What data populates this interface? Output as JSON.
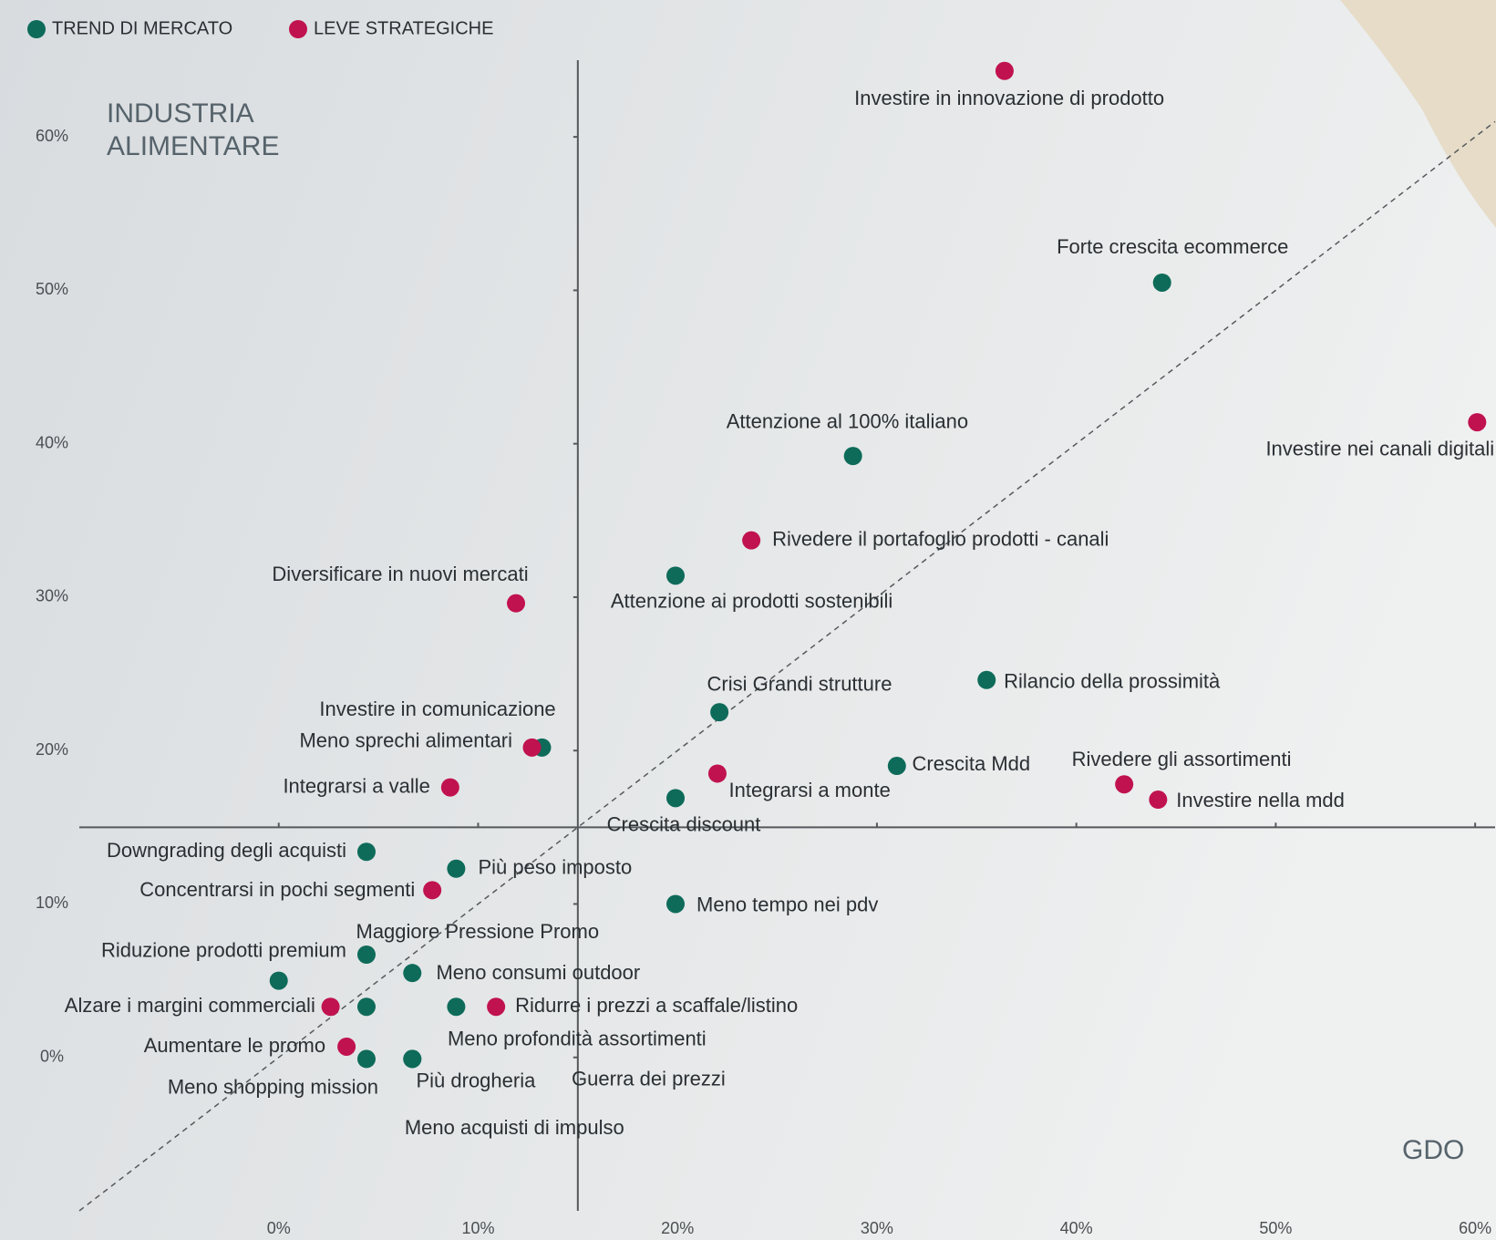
{
  "chart_data": {
    "type": "scatter",
    "legend": "top-left",
    "corner_labels": {
      "y_axis": [
        "INDUSTRIA",
        "ALIMENTARE"
      ],
      "x_axis": "GDO"
    },
    "xlim": [
      -10,
      61
    ],
    "ylim": [
      -10,
      65
    ],
    "xticks": [
      {
        "value": 0,
        "label": "0%"
      },
      {
        "value": 10,
        "label": "10%"
      },
      {
        "value": 20,
        "label": "20%"
      },
      {
        "value": 30,
        "label": "30%"
      },
      {
        "value": 40,
        "label": "40%"
      },
      {
        "value": 50,
        "label": "50%"
      },
      {
        "value": 60,
        "label": "60%"
      }
    ],
    "yticks": [
      {
        "value": 0,
        "label": "0%"
      },
      {
        "value": 10,
        "label": "10%"
      },
      {
        "value": 20,
        "label": "20%"
      },
      {
        "value": 30,
        "label": "30%"
      },
      {
        "value": 40,
        "label": "40%"
      },
      {
        "value": 50,
        "label": "50%"
      },
      {
        "value": 60,
        "label": "60%"
      }
    ],
    "quadrant_center": {
      "x": 15,
      "y": 15
    },
    "diagonal": true,
    "series": [
      {
        "name": "TREND DI MERCATO",
        "color": "#0e6b5a",
        "labels": [
          "Forte crescita ecommerce",
          "Attenzione al 100% italiano",
          "Attenzione ai prodotti sostenibili",
          "Crisi Grandi strutture",
          "Rilancio della prossimità",
          "Crescita Mdd",
          "Crescita discount",
          "Meno sprechi alimentari",
          "Downgrading degli acquisti",
          "Più peso imposto",
          "Meno tempo nei pdv",
          "Riduzione prodotti premium",
          "Maggiore Pressione Promo",
          "Meno consumi outdoor",
          "Meno profondità assortimenti",
          "Meno acquisti di impulso",
          "Meno shopping mission",
          "Più drogheria",
          "Guerra dei prezzi"
        ],
        "x": [
          44.3,
          28.8,
          19.9,
          22.1,
          35.5,
          31.0,
          19.9,
          13.2,
          4.4,
          8.9,
          19.9,
          4.4,
          0.0,
          6.7,
          8.9,
          4.4,
          4.4,
          6.7,
          6.7
        ],
        "values": [
          50.5,
          39.2,
          31.4,
          22.5,
          24.6,
          19.0,
          16.9,
          20.2,
          13.4,
          12.3,
          10.0,
          6.7,
          5.0,
          5.5,
          3.3,
          3.3,
          -0.1,
          -0.1,
          -0.1
        ]
      },
      {
        "name": "LEVE STRATEGICHE",
        "color": "#c0124f",
        "labels": [
          "Investire in innovazione di prodotto",
          "Investire nei canali digitali",
          "Rivedere il portafoglio prodotti - canali",
          "Diversificare in nuovi mercati",
          "Investire in comunicazione",
          "Integrarsi a valle",
          "Integrarsi a monte",
          "Rivedere gli assortimenti",
          "Investire nella mdd",
          "Concentrarsi in pochi segmenti",
          "Alzare i margini commerciali",
          "Ridurre i prezzi a scaffale/listino",
          "Aumentare le promo"
        ],
        "x": [
          36.4,
          60.1,
          23.7,
          11.9,
          12.7,
          8.6,
          22.0,
          42.4,
          44.1,
          7.7,
          2.6,
          10.9,
          3.4
        ],
        "values": [
          64.3,
          41.4,
          33.7,
          29.6,
          20.2,
          17.6,
          18.5,
          17.8,
          16.8,
          10.9,
          3.3,
          3.3,
          0.7
        ]
      }
    ]
  }
}
